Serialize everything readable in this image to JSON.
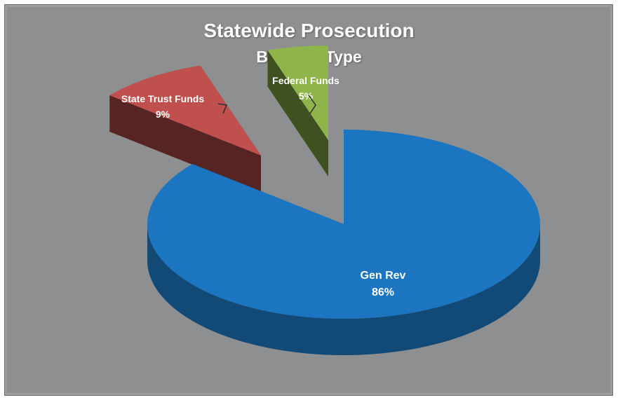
{
  "chart_data": {
    "type": "pie",
    "title": "Statewide Prosecution",
    "subtitle": "By Fund Type",
    "slices": [
      {
        "label": "Gen Rev",
        "value": 86,
        "display": "86%",
        "color": "#1b75c0"
      },
      {
        "label": "State Trust Funds",
        "value": 9,
        "display": "9%",
        "color": "#c0504d"
      },
      {
        "label": "Federal Funds",
        "value": 5,
        "display": "5%",
        "color": "#8fb54a"
      }
    ]
  }
}
